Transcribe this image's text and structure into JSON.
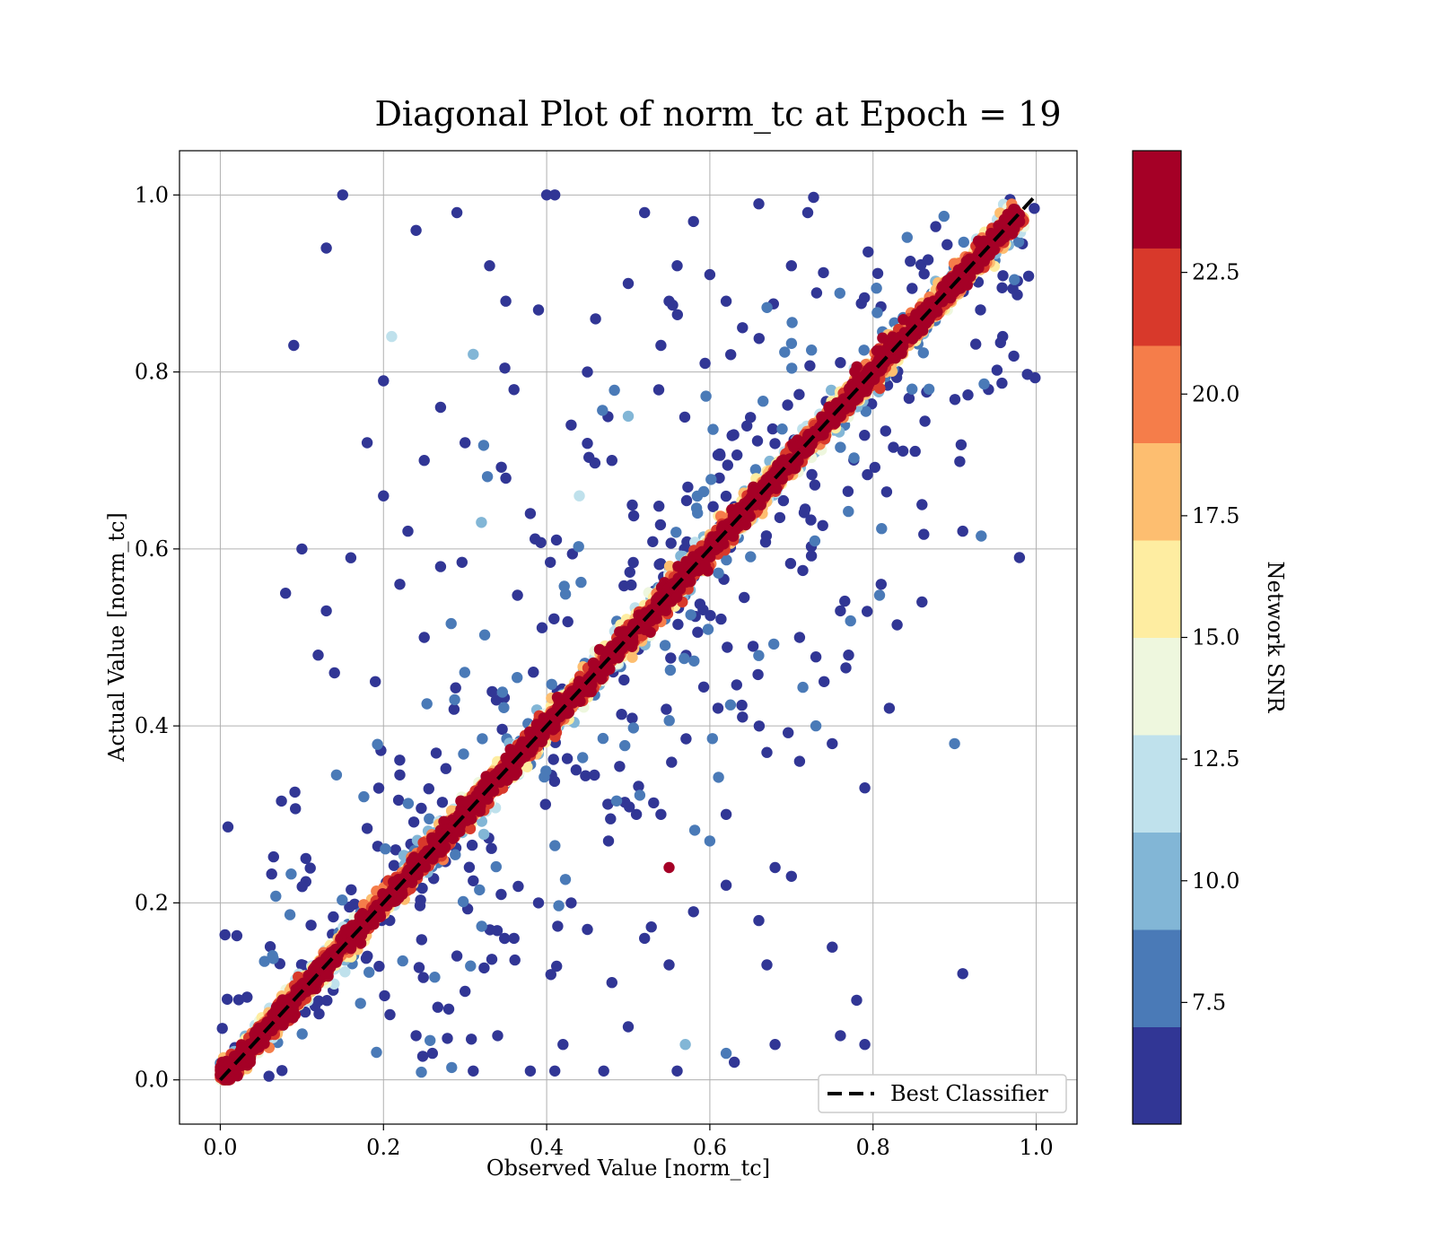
{
  "chart_data": {
    "type": "scatter",
    "title": "Diagonal Plot of norm_tc at Epoch = 19",
    "xlabel": "Observed Value [norm_tc]",
    "ylabel": "Actual Value [norm_tc]",
    "xlim": [
      -0.05,
      1.05
    ],
    "ylim": [
      -0.05,
      1.05
    ],
    "x_ticks": [
      0.0,
      0.2,
      0.4,
      0.6,
      0.8,
      1.0
    ],
    "y_ticks": [
      0.0,
      0.2,
      0.4,
      0.6,
      0.8,
      1.0
    ],
    "x_tick_labels": [
      "0.0",
      "0.2",
      "0.4",
      "0.6",
      "0.8",
      "1.0"
    ],
    "y_tick_labels": [
      "0.0",
      "0.2",
      "0.4",
      "0.6",
      "0.8",
      "1.0"
    ],
    "grid": true,
    "legend": {
      "placement": "lower-right",
      "entries": [
        "Best Classifier"
      ]
    },
    "reference_line": {
      "name": "Best Classifier",
      "style": "dashed",
      "color": "#000000",
      "x": [
        0.0,
        1.0
      ],
      "y": [
        0.0,
        1.0
      ]
    },
    "colorbar": {
      "label": "Network SNR",
      "range": [
        5.0,
        25.0
      ],
      "tick_values": [
        7.5,
        10.0,
        12.5,
        15.0,
        17.5,
        20.0,
        22.5
      ],
      "tick_labels": [
        "7.5",
        "10.0",
        "12.5",
        "15.0",
        "17.5",
        "20.0",
        "22.5"
      ],
      "bands": [
        "#313695",
        "#4a7ab7",
        "#82b6d6",
        "#bfe1ec",
        "#eef7de",
        "#feeda1",
        "#fdbe70",
        "#f57d4a",
        "#d8392b",
        "#a50026"
      ]
    },
    "outliers": [
      {
        "x": 0.15,
        "y": 1.0,
        "snr": 6
      },
      {
        "x": 0.13,
        "y": 0.94,
        "snr": 6
      },
      {
        "x": 0.09,
        "y": 0.83,
        "snr": 6
      },
      {
        "x": 0.1,
        "y": 0.6,
        "snr": 6
      },
      {
        "x": 0.08,
        "y": 0.55,
        "snr": 6
      },
      {
        "x": 0.2,
        "y": 0.79,
        "snr": 6
      },
      {
        "x": 0.21,
        "y": 0.84,
        "snr": 12
      },
      {
        "x": 0.18,
        "y": 0.72,
        "snr": 6
      },
      {
        "x": 0.24,
        "y": 0.96,
        "snr": 6
      },
      {
        "x": 0.29,
        "y": 0.98,
        "snr": 6
      },
      {
        "x": 0.33,
        "y": 0.92,
        "snr": 6
      },
      {
        "x": 0.4,
        "y": 1.0,
        "snr": 6
      },
      {
        "x": 0.41,
        "y": 1.0,
        "snr": 6
      },
      {
        "x": 0.46,
        "y": 0.86,
        "snr": 6
      },
      {
        "x": 0.52,
        "y": 0.98,
        "snr": 6
      },
      {
        "x": 0.58,
        "y": 0.97,
        "snr": 6
      },
      {
        "x": 0.66,
        "y": 0.99,
        "snr": 6
      },
      {
        "x": 0.31,
        "y": 0.82,
        "snr": 10
      },
      {
        "x": 0.36,
        "y": 0.78,
        "snr": 6
      },
      {
        "x": 0.25,
        "y": 0.7,
        "snr": 6
      },
      {
        "x": 0.23,
        "y": 0.62,
        "snr": 6
      },
      {
        "x": 0.27,
        "y": 0.58,
        "snr": 6
      },
      {
        "x": 0.13,
        "y": 0.53,
        "snr": 6
      },
      {
        "x": 0.12,
        "y": 0.48,
        "snr": 6
      },
      {
        "x": 0.14,
        "y": 0.46,
        "snr": 6
      },
      {
        "x": 0.19,
        "y": 0.45,
        "snr": 6
      },
      {
        "x": 0.5,
        "y": 0.9,
        "snr": 6
      },
      {
        "x": 0.54,
        "y": 0.83,
        "snr": 6
      },
      {
        "x": 0.62,
        "y": 0.88,
        "snr": 6
      },
      {
        "x": 0.43,
        "y": 0.74,
        "snr": 6
      },
      {
        "x": 0.35,
        "y": 0.68,
        "snr": 6
      },
      {
        "x": 0.2,
        "y": 0.66,
        "snr": 6
      },
      {
        "x": 0.44,
        "y": 0.66,
        "snr": 12
      },
      {
        "x": 0.72,
        "y": 0.98,
        "snr": 6
      },
      {
        "x": 0.7,
        "y": 0.92,
        "snr": 6
      },
      {
        "x": 0.56,
        "y": 0.92,
        "snr": 6
      },
      {
        "x": 0.91,
        "y": 0.62,
        "snr": 6
      },
      {
        "x": 0.81,
        "y": 0.56,
        "snr": 6
      },
      {
        "x": 0.86,
        "y": 0.65,
        "snr": 6
      },
      {
        "x": 0.86,
        "y": 0.54,
        "snr": 6
      },
      {
        "x": 0.79,
        "y": 0.33,
        "snr": 6
      },
      {
        "x": 0.9,
        "y": 0.38,
        "snr": 8
      },
      {
        "x": 0.91,
        "y": 0.12,
        "snr": 6
      },
      {
        "x": 0.79,
        "y": 0.04,
        "snr": 6
      },
      {
        "x": 0.78,
        "y": 0.09,
        "snr": 6
      },
      {
        "x": 0.76,
        "y": 0.05,
        "snr": 6
      },
      {
        "x": 0.75,
        "y": 0.15,
        "snr": 6
      },
      {
        "x": 0.71,
        "y": 0.36,
        "snr": 6
      },
      {
        "x": 0.73,
        "y": 0.4,
        "snr": 8
      },
      {
        "x": 0.67,
        "y": 0.37,
        "snr": 6
      },
      {
        "x": 0.68,
        "y": 0.24,
        "snr": 6
      },
      {
        "x": 0.7,
        "y": 0.23,
        "snr": 6
      },
      {
        "x": 0.66,
        "y": 0.18,
        "snr": 6
      },
      {
        "x": 0.67,
        "y": 0.13,
        "snr": 6
      },
      {
        "x": 0.63,
        "y": 0.02,
        "snr": 6
      },
      {
        "x": 0.62,
        "y": 0.03,
        "snr": 8
      },
      {
        "x": 0.68,
        "y": 0.04,
        "snr": 6
      },
      {
        "x": 0.58,
        "y": 0.19,
        "snr": 6
      },
      {
        "x": 0.6,
        "y": 0.27,
        "snr": 8
      },
      {
        "x": 0.62,
        "y": 0.22,
        "snr": 6
      },
      {
        "x": 0.55,
        "y": 0.24,
        "snr": 24
      },
      {
        "x": 0.52,
        "y": 0.16,
        "snr": 6
      },
      {
        "x": 0.5,
        "y": 0.06,
        "snr": 6
      },
      {
        "x": 0.47,
        "y": 0.01,
        "snr": 6
      },
      {
        "x": 0.41,
        "y": 0.01,
        "snr": 6
      },
      {
        "x": 0.42,
        "y": 0.04,
        "snr": 6
      },
      {
        "x": 0.38,
        "y": 0.01,
        "snr": 6
      },
      {
        "x": 0.34,
        "y": 0.05,
        "snr": 6
      },
      {
        "x": 0.31,
        "y": 0.01,
        "snr": 6
      },
      {
        "x": 0.26,
        "y": 0.03,
        "snr": 6
      },
      {
        "x": 0.57,
        "y": 0.04,
        "snr": 10
      },
      {
        "x": 0.56,
        "y": 0.01,
        "snr": 6
      },
      {
        "x": 0.55,
        "y": 0.13,
        "snr": 6
      },
      {
        "x": 0.48,
        "y": 0.11,
        "snr": 6
      },
      {
        "x": 0.45,
        "y": 0.17,
        "snr": 6
      },
      {
        "x": 0.36,
        "y": 0.16,
        "snr": 6
      },
      {
        "x": 0.3,
        "y": 0.1,
        "snr": 6
      },
      {
        "x": 0.29,
        "y": 0.14,
        "snr": 6
      },
      {
        "x": 0.51,
        "y": 0.3,
        "snr": 6
      },
      {
        "x": 0.54,
        "y": 0.3,
        "snr": 6
      },
      {
        "x": 0.62,
        "y": 0.3,
        "snr": 6
      },
      {
        "x": 0.61,
        "y": 0.42,
        "snr": 6
      },
      {
        "x": 0.64,
        "y": 0.41,
        "snr": 6
      },
      {
        "x": 0.71,
        "y": 0.5,
        "snr": 6
      },
      {
        "x": 0.76,
        "y": 0.53,
        "snr": 6
      },
      {
        "x": 0.77,
        "y": 0.48,
        "snr": 6
      },
      {
        "x": 0.74,
        "y": 0.45,
        "snr": 6
      },
      {
        "x": 0.82,
        "y": 0.42,
        "snr": 6
      },
      {
        "x": 0.75,
        "y": 0.38,
        "snr": 6
      },
      {
        "x": 0.43,
        "y": 0.2,
        "snr": 6
      },
      {
        "x": 0.39,
        "y": 0.2,
        "snr": 6
      },
      {
        "x": 0.28,
        "y": 0.08,
        "snr": 6
      },
      {
        "x": 0.24,
        "y": 0.05,
        "snr": 6
      },
      {
        "x": 0.27,
        "y": 0.76,
        "snr": 6
      },
      {
        "x": 0.3,
        "y": 0.72,
        "snr": 6
      },
      {
        "x": 0.32,
        "y": 0.63,
        "snr": 10
      },
      {
        "x": 0.38,
        "y": 0.64,
        "snr": 6
      },
      {
        "x": 0.35,
        "y": 0.88,
        "snr": 6
      },
      {
        "x": 0.39,
        "y": 0.87,
        "snr": 6
      },
      {
        "x": 0.45,
        "y": 0.8,
        "snr": 6
      },
      {
        "x": 0.5,
        "y": 0.75,
        "snr": 10
      },
      {
        "x": 0.48,
        "y": 0.7,
        "snr": 6
      },
      {
        "x": 0.55,
        "y": 0.88,
        "snr": 6
      },
      {
        "x": 0.6,
        "y": 0.91,
        "snr": 6
      },
      {
        "x": 0.64,
        "y": 0.85,
        "snr": 6
      },
      {
        "x": 0.22,
        "y": 0.56,
        "snr": 6
      },
      {
        "x": 0.16,
        "y": 0.59,
        "snr": 6
      },
      {
        "x": 0.25,
        "y": 0.5,
        "snr": 6
      }
    ]
  }
}
